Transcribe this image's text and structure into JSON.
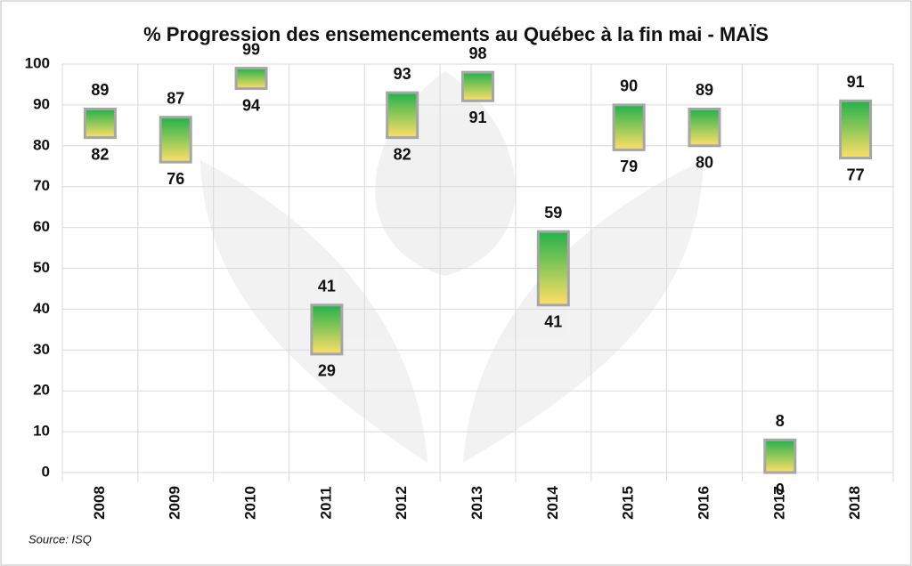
{
  "chart_data": {
    "type": "floating_bar",
    "title": "% Progression des ensemencements au Québec à la fin mai - MAÏS",
    "source": "Source: ISQ",
    "categories": [
      "2008",
      "2009",
      "2010",
      "2011",
      "2012",
      "2013",
      "2014",
      "2015",
      "2016",
      "2017",
      "2018"
    ],
    "low": [
      82,
      76,
      94,
      29,
      82,
      91,
      41,
      79,
      80,
      0,
      77
    ],
    "high": [
      89,
      87,
      99,
      41,
      93,
      98,
      59,
      90,
      89,
      8,
      91
    ],
    "colors": [
      "#22b14c",
      "#ffe066"
    ],
    "ylim": [
      0,
      100
    ],
    "yticks": [
      0,
      10,
      20,
      30,
      40,
      50,
      60,
      70,
      80,
      90,
      100
    ],
    "grid": true
  }
}
